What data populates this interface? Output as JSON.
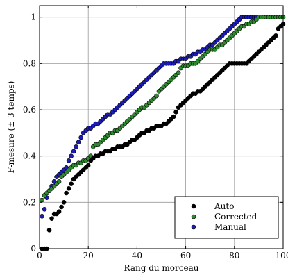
{
  "chart_data": {
    "type": "scatter",
    "xlabel": "Rang du morceau",
    "ylabel": "F-mesure (± 3 temps)",
    "xlim": [
      0,
      100
    ],
    "ylim": [
      0,
      1.05
    ],
    "xticks": [
      0,
      20,
      40,
      60,
      80,
      100
    ],
    "yticks": [
      0,
      0.2,
      0.4,
      0.6,
      0.8,
      1
    ],
    "xtick_labels": [
      "0",
      "20",
      "40",
      "60",
      "80",
      "100"
    ],
    "ytick_labels": [
      "0",
      "0.2",
      "0.4",
      "0.6",
      "0.8",
      "1"
    ],
    "grid": true,
    "legend_position": "lower-right",
    "series": [
      {
        "name": "Auto",
        "color": "#000000",
        "x": [
          1,
          2,
          3,
          4,
          5,
          6,
          7,
          8,
          9,
          10,
          11,
          12,
          13,
          14,
          15,
          16,
          17,
          18,
          19,
          20,
          21,
          22,
          23,
          24,
          25,
          26,
          27,
          28,
          29,
          30,
          31,
          32,
          33,
          34,
          35,
          36,
          37,
          38,
          39,
          40,
          41,
          42,
          43,
          44,
          45,
          46,
          47,
          48,
          49,
          50,
          51,
          52,
          53,
          54,
          55,
          56,
          57,
          58,
          59,
          60,
          61,
          62,
          63,
          64,
          65,
          66,
          67,
          68,
          69,
          70,
          71,
          72,
          73,
          74,
          75,
          76,
          77,
          78,
          79,
          80,
          81,
          82,
          83,
          84,
          85,
          86,
          87,
          88,
          89,
          90,
          91,
          92,
          93,
          94,
          95,
          96,
          97,
          98,
          99,
          100
        ],
        "y": [
          0.0,
          0.0,
          0.0,
          0.08,
          0.13,
          0.15,
          0.15,
          0.16,
          0.18,
          0.2,
          0.24,
          0.26,
          0.28,
          0.3,
          0.31,
          0.32,
          0.33,
          0.34,
          0.35,
          0.36,
          0.38,
          0.39,
          0.4,
          0.4,
          0.41,
          0.41,
          0.42,
          0.42,
          0.42,
          0.43,
          0.43,
          0.44,
          0.44,
          0.44,
          0.45,
          0.45,
          0.46,
          0.47,
          0.47,
          0.48,
          0.49,
          0.5,
          0.5,
          0.51,
          0.51,
          0.52,
          0.52,
          0.53,
          0.53,
          0.53,
          0.54,
          0.54,
          0.55,
          0.56,
          0.57,
          0.59,
          0.61,
          0.62,
          0.63,
          0.64,
          0.65,
          0.66,
          0.67,
          0.67,
          0.68,
          0.68,
          0.69,
          0.7,
          0.71,
          0.72,
          0.73,
          0.74,
          0.75,
          0.76,
          0.77,
          0.78,
          0.79,
          0.8,
          0.8,
          0.8,
          0.8,
          0.8,
          0.8,
          0.8,
          0.8,
          0.81,
          0.82,
          0.83,
          0.84,
          0.85,
          0.86,
          0.87,
          0.88,
          0.89,
          0.9,
          0.91,
          0.92,
          0.95,
          0.96,
          0.97
        ]
      },
      {
        "name": "Corrected",
        "color": "#2e8a2e",
        "x": [
          1,
          2,
          3,
          4,
          5,
          6,
          7,
          8,
          9,
          10,
          11,
          12,
          13,
          14,
          15,
          16,
          17,
          18,
          19,
          20,
          21,
          22,
          23,
          24,
          25,
          26,
          27,
          28,
          29,
          30,
          31,
          32,
          33,
          34,
          35,
          36,
          37,
          38,
          39,
          40,
          41,
          42,
          43,
          44,
          45,
          46,
          47,
          48,
          49,
          50,
          51,
          52,
          53,
          54,
          55,
          56,
          57,
          58,
          59,
          60,
          61,
          62,
          63,
          64,
          65,
          66,
          67,
          68,
          69,
          70,
          71,
          72,
          73,
          74,
          75,
          76,
          77,
          78,
          79,
          80,
          81,
          82,
          83,
          84,
          85,
          86,
          87,
          88,
          89,
          90,
          91,
          92,
          93,
          94,
          95,
          96,
          97,
          98,
          99,
          100
        ],
        "y": [
          0.21,
          0.23,
          0.24,
          0.25,
          0.26,
          0.27,
          0.28,
          0.29,
          0.31,
          0.32,
          0.33,
          0.34,
          0.35,
          0.36,
          0.36,
          0.37,
          0.37,
          0.38,
          0.38,
          0.39,
          0.4,
          0.44,
          0.45,
          0.45,
          0.46,
          0.47,
          0.48,
          0.49,
          0.5,
          0.5,
          0.51,
          0.51,
          0.52,
          0.53,
          0.54,
          0.55,
          0.56,
          0.57,
          0.58,
          0.59,
          0.6,
          0.61,
          0.61,
          0.62,
          0.63,
          0.64,
          0.65,
          0.66,
          0.68,
          0.69,
          0.7,
          0.71,
          0.72,
          0.73,
          0.74,
          0.75,
          0.76,
          0.78,
          0.79,
          0.79,
          0.79,
          0.8,
          0.8,
          0.8,
          0.81,
          0.82,
          0.83,
          0.84,
          0.85,
          0.86,
          0.86,
          0.86,
          0.87,
          0.88,
          0.88,
          0.89,
          0.9,
          0.91,
          0.92,
          0.93,
          0.94,
          0.95,
          0.96,
          0.96,
          0.97,
          0.97,
          0.98,
          0.98,
          0.99,
          1.0,
          1.0,
          1.0,
          1.0,
          1.0,
          1.0,
          1.0,
          1.0,
          1.0,
          1.0,
          1.0
        ]
      },
      {
        "name": "Manual",
        "color": "#1c1cb8",
        "x": [
          1,
          2,
          3,
          4,
          5,
          6,
          7,
          8,
          9,
          10,
          11,
          12,
          13,
          14,
          15,
          16,
          17,
          18,
          19,
          20,
          21,
          22,
          23,
          24,
          25,
          26,
          27,
          28,
          29,
          30,
          31,
          32,
          33,
          34,
          35,
          36,
          37,
          38,
          39,
          40,
          41,
          42,
          43,
          44,
          45,
          46,
          47,
          48,
          49,
          50,
          51,
          52,
          53,
          54,
          55,
          56,
          57,
          58,
          59,
          60,
          61,
          62,
          63,
          64,
          65,
          66,
          67,
          68,
          69,
          70,
          71,
          72,
          73,
          74,
          75,
          76,
          77,
          78,
          79,
          80,
          81,
          82,
          83,
          84,
          85,
          86,
          87,
          88,
          89,
          90,
          91,
          92,
          93,
          94,
          95,
          96,
          97,
          98,
          99,
          100
        ],
        "y": [
          0.14,
          0.17,
          0.22,
          0.25,
          0.27,
          0.29,
          0.31,
          0.32,
          0.33,
          0.34,
          0.35,
          0.38,
          0.4,
          0.42,
          0.44,
          0.46,
          0.48,
          0.5,
          0.51,
          0.52,
          0.52,
          0.53,
          0.54,
          0.54,
          0.55,
          0.56,
          0.57,
          0.58,
          0.58,
          0.59,
          0.6,
          0.61,
          0.62,
          0.63,
          0.64,
          0.65,
          0.66,
          0.67,
          0.68,
          0.69,
          0.7,
          0.71,
          0.72,
          0.73,
          0.74,
          0.75,
          0.76,
          0.77,
          0.78,
          0.79,
          0.8,
          0.8,
          0.8,
          0.8,
          0.8,
          0.81,
          0.81,
          0.82,
          0.82,
          0.82,
          0.83,
          0.83,
          0.84,
          0.84,
          0.85,
          0.85,
          0.86,
          0.86,
          0.87,
          0.88,
          0.88,
          0.89,
          0.9,
          0.91,
          0.92,
          0.93,
          0.94,
          0.95,
          0.96,
          0.97,
          0.98,
          0.99,
          1.0,
          1.0,
          1.0,
          1.0,
          1.0,
          1.0,
          1.0,
          1.0,
          1.0,
          1.0,
          1.0,
          1.0,
          1.0,
          1.0,
          1.0,
          1.0,
          1.0,
          1.0
        ]
      }
    ]
  }
}
